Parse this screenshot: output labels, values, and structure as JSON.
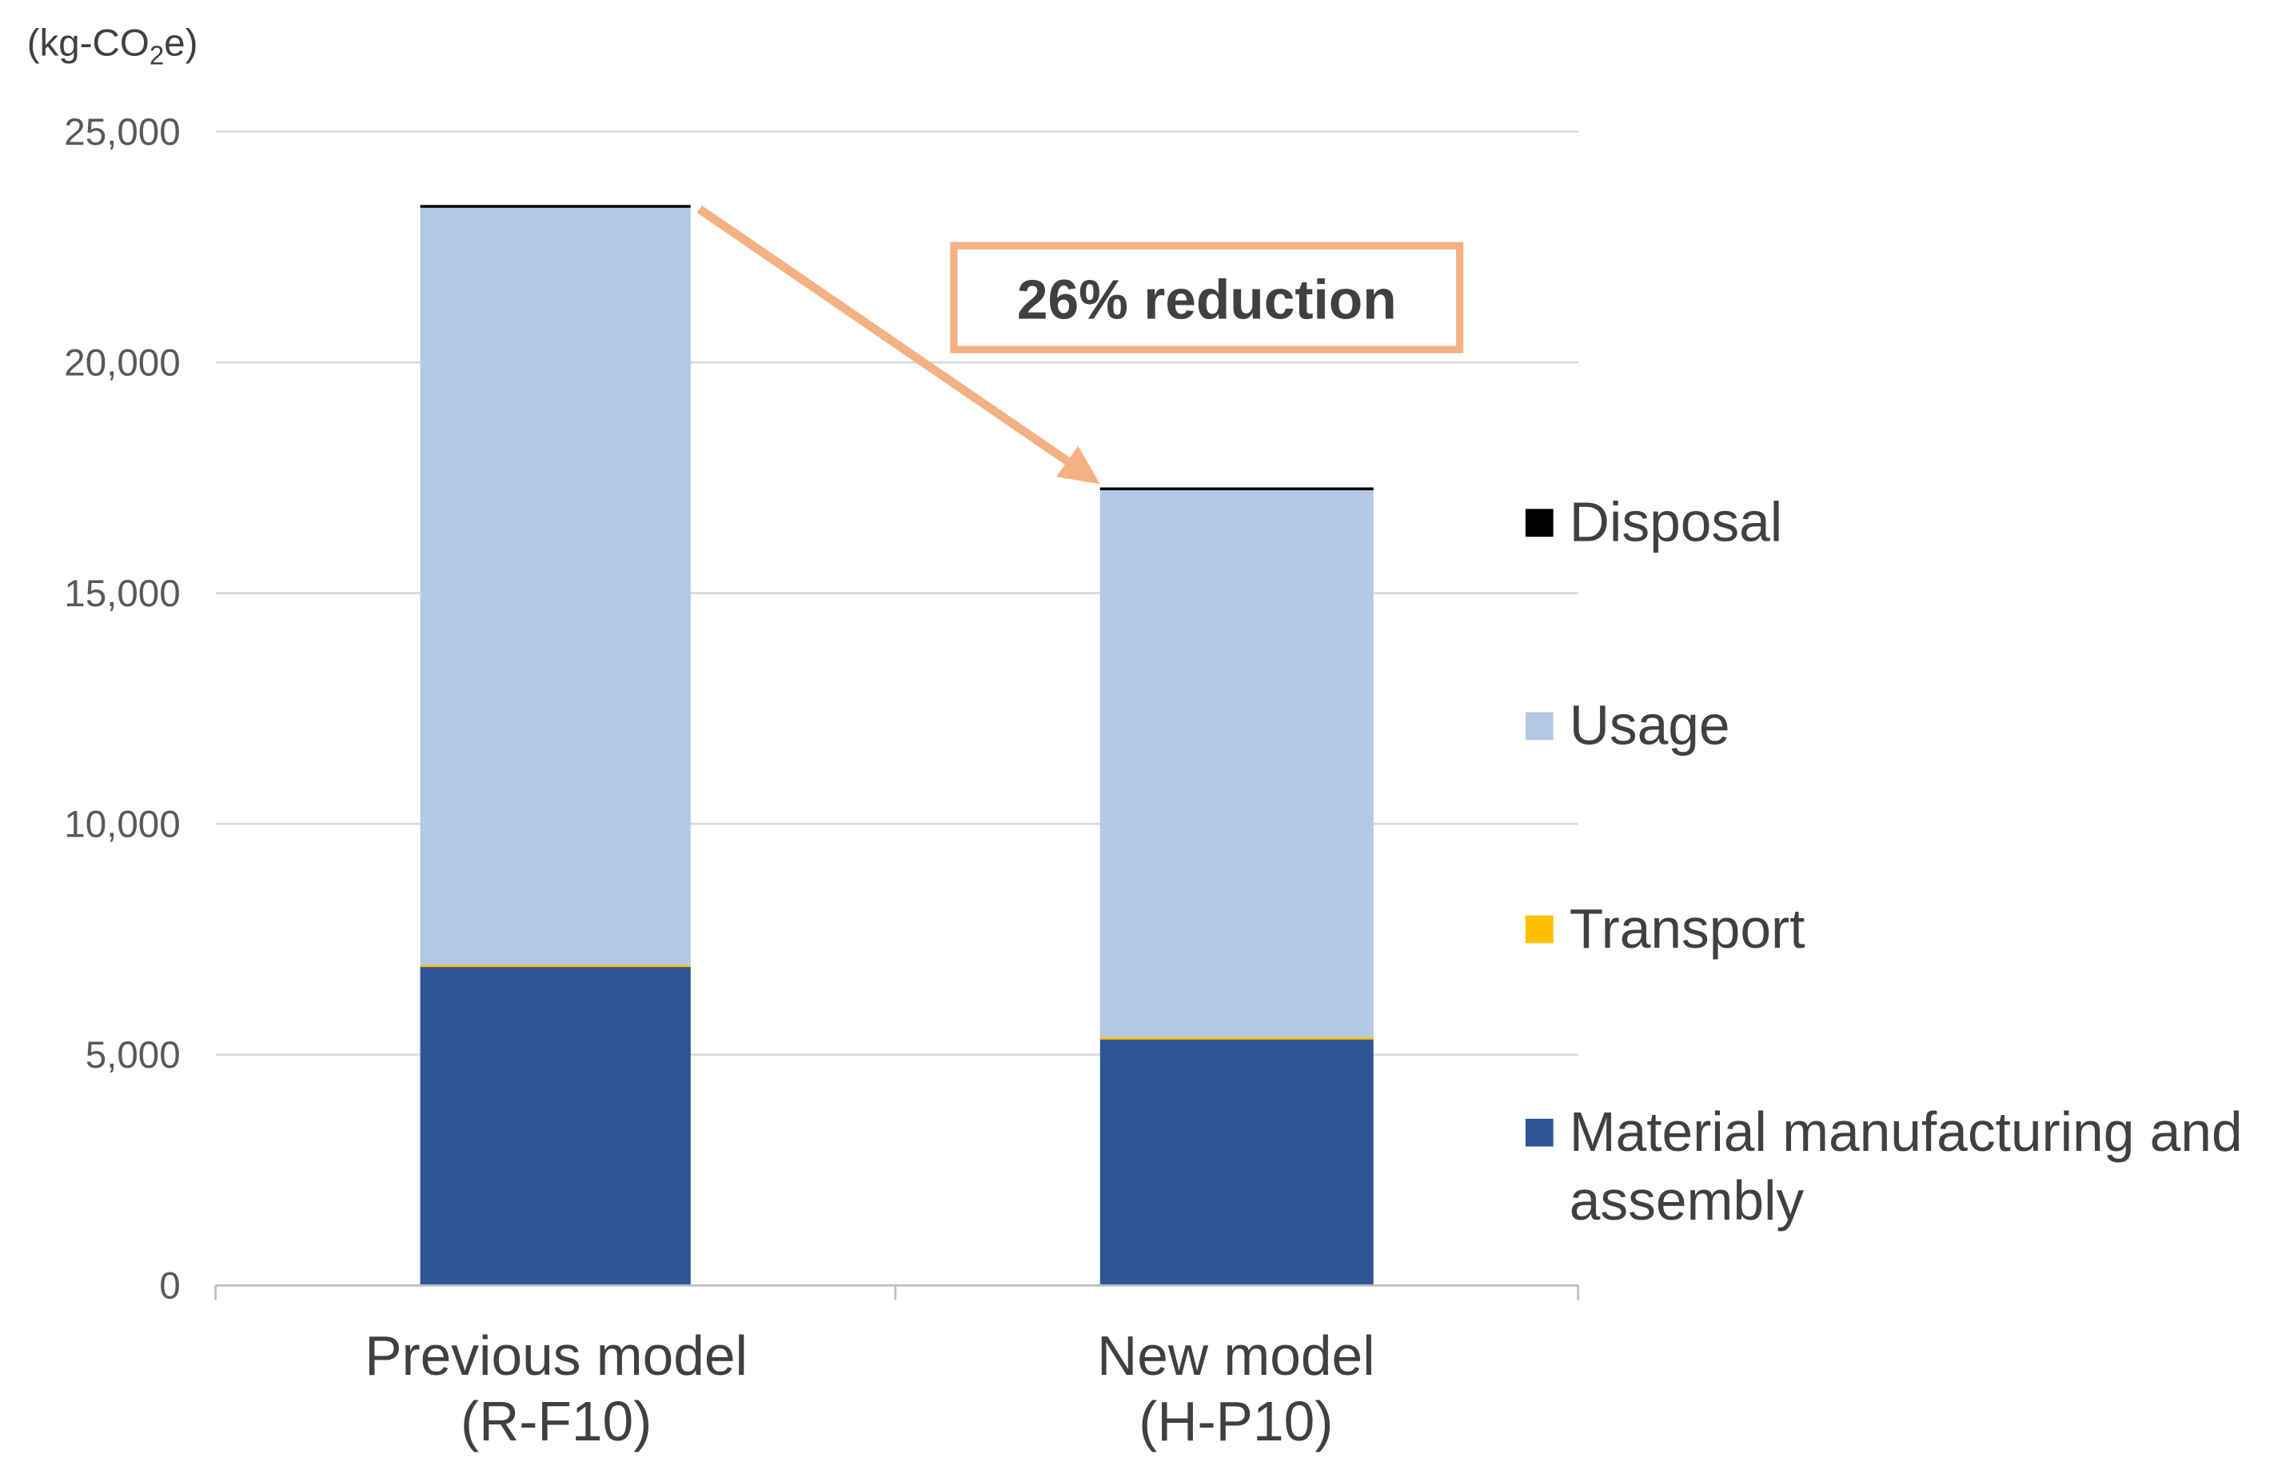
{
  "chart_data": {
    "type": "bar",
    "stacked": true,
    "unit_label": "(kg-CO",
    "unit_label_sub": "2",
    "unit_label_end": "e)",
    "categories": [
      [
        "Previous model",
        "(R-F10)"
      ],
      [
        "New model",
        "(H-P10)"
      ]
    ],
    "series": [
      {
        "name": "Material manufacturing and assembly",
        "name_lines": [
          "Material manufacturing and",
          "assembly"
        ],
        "color": "#2F5597",
        "values": [
          6900,
          5330
        ]
      },
      {
        "name": "Transport",
        "name_lines": [
          "Transport"
        ],
        "color": "#FFC000",
        "values": [
          50,
          50
        ]
      },
      {
        "name": "Usage",
        "name_lines": [
          "Usage"
        ],
        "color": "#B4C7E7",
        "values": [
          16400,
          11850
        ]
      },
      {
        "name": "Disposal",
        "name_lines": [
          "Disposal"
        ],
        "color": "#000000",
        "values": [
          60,
          60
        ]
      }
    ],
    "ylim": [
      0,
      25000
    ],
    "yticks": [
      0,
      5000,
      10000,
      15000,
      20000,
      25000
    ],
    "ytick_labels": [
      "0",
      "5,000",
      "10,000",
      "15,000",
      "20,000",
      "25,000"
    ],
    "grid": true,
    "legend_position": "right",
    "annotation": {
      "text": "26% reduction",
      "color": "#F4B183"
    }
  }
}
